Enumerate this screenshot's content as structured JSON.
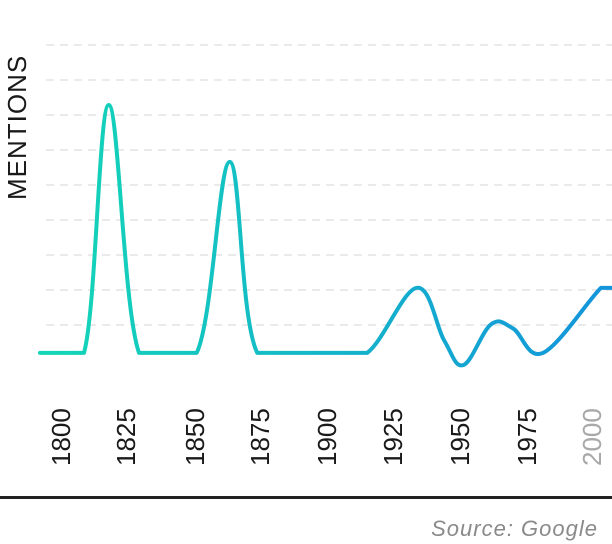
{
  "chart_data": {
    "type": "line",
    "ylabel": "MENTIONS",
    "x_ticks": [
      "1800",
      "1825",
      "1850",
      "1875",
      "1900",
      "1925",
      "1950",
      "1975",
      "2000"
    ],
    "x": [
      1796,
      1812,
      1821,
      1832,
      1853,
      1865,
      1875,
      1900,
      1915,
      1933,
      1943,
      1950,
      1960,
      1968,
      1979,
      2000,
      2004
    ],
    "values": [
      0.3,
      0.3,
      6.4,
      0.3,
      0.3,
      5.0,
      0.3,
      0.3,
      0.3,
      1.9,
      0.6,
      0.0,
      1.0,
      0.9,
      0.3,
      1.9,
      1.9
    ],
    "xlim": [
      1796,
      2004
    ],
    "ylim": [
      0,
      8
    ],
    "grid": true,
    "line_colors": [
      "#14d7b7",
      "#1494db"
    ],
    "source": "Source: Google"
  }
}
